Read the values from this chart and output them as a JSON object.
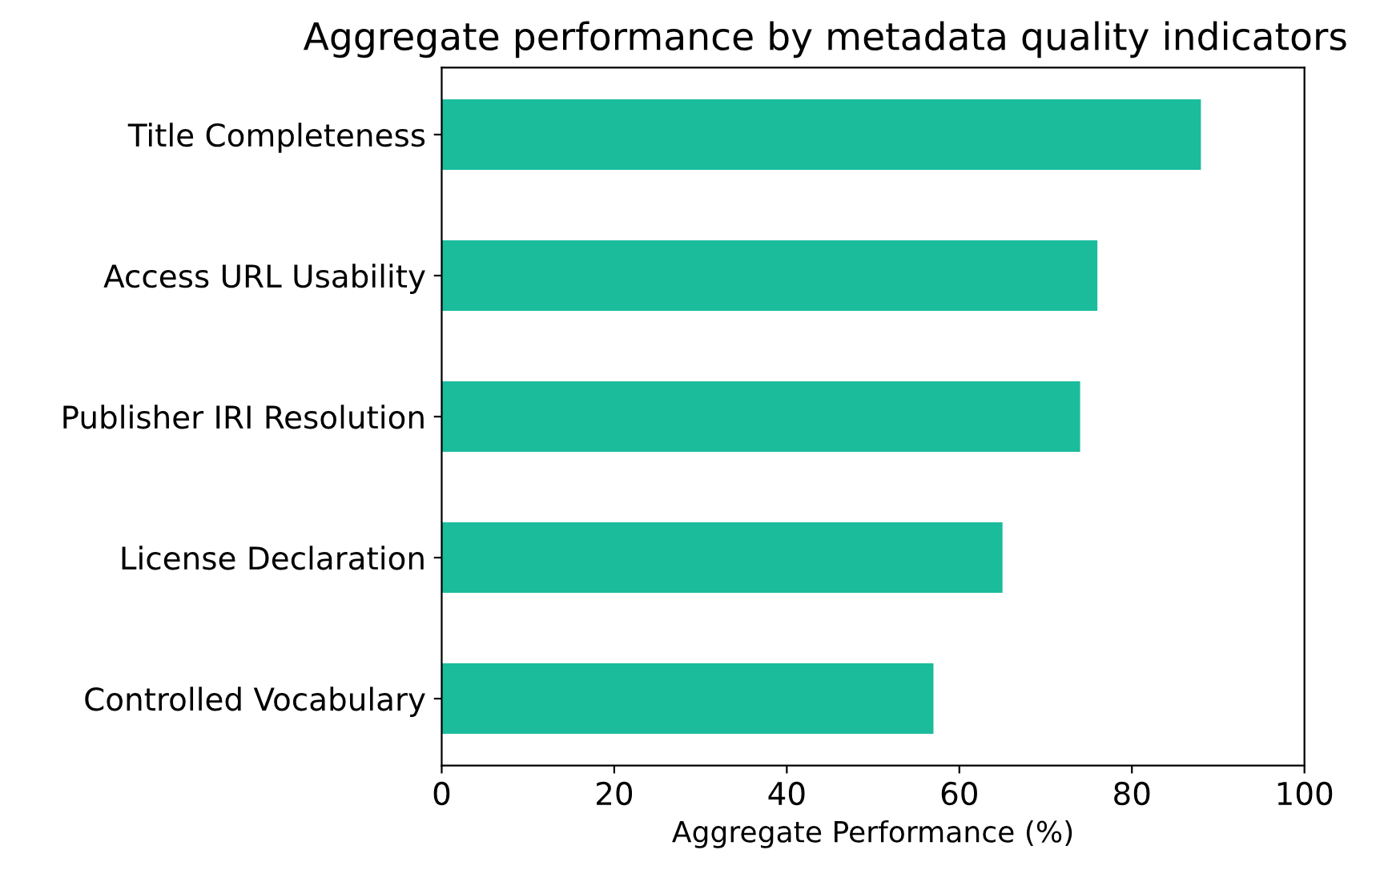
{
  "chart_data": {
    "type": "bar",
    "orientation": "horizontal",
    "title": "Aggregate performance by metadata quality indicators",
    "xlabel": "Aggregate Performance (%)",
    "categories": [
      "Title Completeness",
      "Access URL Usability",
      "Publisher IRI Resolution",
      "License Declaration",
      "Controlled Vocabulary"
    ],
    "values": [
      88,
      76,
      74,
      65,
      57
    ],
    "color": "#1abc9c",
    "xlim": [
      0,
      100
    ],
    "xticks": [
      0,
      20,
      40,
      60,
      80,
      100
    ],
    "grid": false,
    "legend": false
  }
}
